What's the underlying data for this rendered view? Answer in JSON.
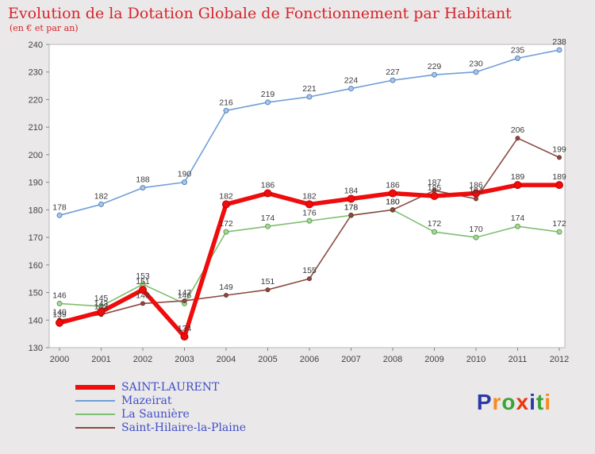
{
  "header": {
    "title": "Evolution de la Dotation Globale de Fonctionnement par Habitant",
    "subtitle": "(en € et par an)"
  },
  "chart_data": {
    "type": "line",
    "x": [
      2000,
      2001,
      2002,
      2003,
      2004,
      2005,
      2006,
      2007,
      2008,
      2009,
      2010,
      2011,
      2012
    ],
    "ylim": [
      130,
      240
    ],
    "yticks": [
      130,
      140,
      150,
      160,
      170,
      180,
      190,
      200,
      210,
      220,
      230,
      240
    ],
    "grid": false,
    "legend_position": "bottom-left",
    "plot_background": "#ffffff",
    "series": [
      {
        "name": "SAINT-LAURENT",
        "color": "#ee0c0c",
        "line_width": 5.5,
        "marker_radius": 4.5,
        "marker_fill": "#ee0c0c",
        "marker_stroke": "#c40000",
        "values": [
          139,
          143,
          151,
          134,
          182,
          186,
          182,
          184,
          186,
          185,
          186,
          189,
          189
        ]
      },
      {
        "name": "Mazeirat",
        "color": "#6f9fd8",
        "line_width": 1.6,
        "marker_radius": 3,
        "marker_fill": "#aac6e8",
        "marker_stroke": "#5584bd",
        "values": [
          178,
          182,
          188,
          190,
          216,
          219,
          221,
          224,
          227,
          229,
          230,
          235,
          238
        ]
      },
      {
        "name": "La Saunière",
        "color": "#7fbf6f",
        "line_width": 1.6,
        "marker_radius": 3,
        "marker_fill": "#a8d698",
        "marker_stroke": "#5f9f50",
        "values": [
          146,
          145,
          153,
          146,
          172,
          174,
          176,
          178,
          180,
          172,
          170,
          174,
          172
        ]
      },
      {
        "name": "Saint-Hilaire-la-Plaine",
        "color": "#8c4a42",
        "line_width": 1.6,
        "marker_radius": 2.5,
        "marker_fill": "#8c4a42",
        "marker_stroke": "#6e352e",
        "values": [
          140,
          142,
          146,
          147,
          149,
          151,
          155,
          178,
          180,
          187,
          184,
          206,
          199
        ]
      }
    ],
    "label_color": "#3a3a3a",
    "axis_color": "#444444"
  },
  "logo": {
    "text": "Proxiti",
    "letters": [
      {
        "ch": "P",
        "color": "#2b39a8"
      },
      {
        "ch": "r",
        "color": "#f68b1f"
      },
      {
        "ch": "o",
        "color": "#3aa537"
      },
      {
        "ch": "x",
        "color": "#e8380d"
      },
      {
        "ch": "i",
        "color": "#2b39a8"
      },
      {
        "ch": "t",
        "color": "#3aa537"
      },
      {
        "ch": "i",
        "color": "#f68b1f"
      }
    ]
  }
}
